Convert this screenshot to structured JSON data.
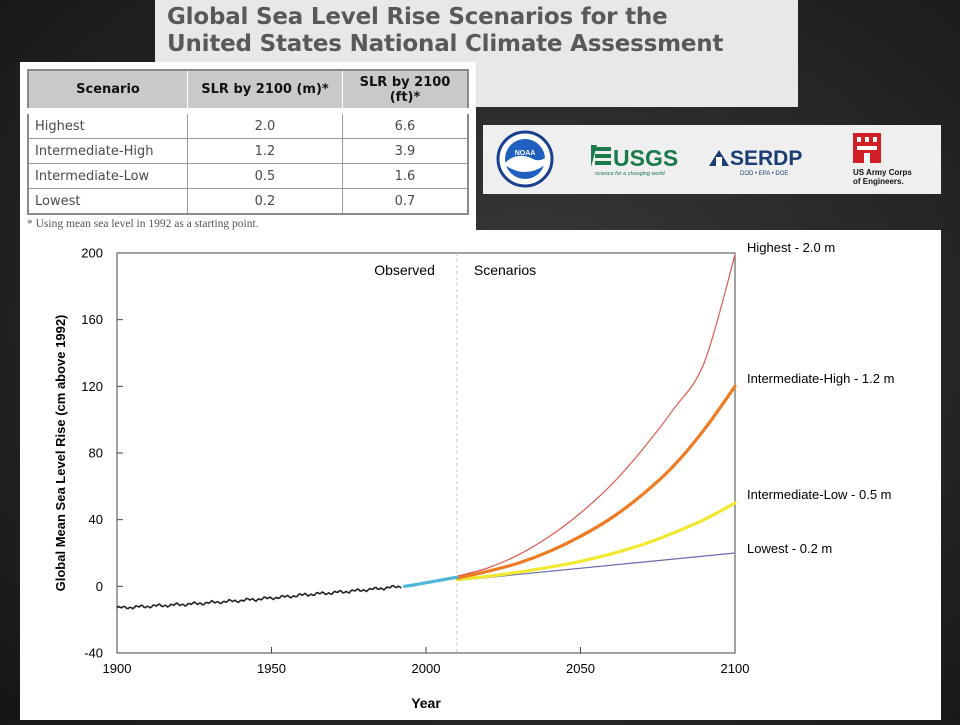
{
  "title": {
    "line1": "Global Sea Level Rise Scenarios for the",
    "line2": "United States National Climate Assessment"
  },
  "table": {
    "headers": [
      "Scenario",
      "SLR by 2100 (m)*",
      "SLR by 2100 (ft)*"
    ],
    "rows": [
      [
        "Highest",
        "2.0",
        "6.6"
      ],
      [
        "Intermediate-High",
        "1.2",
        "3.9"
      ],
      [
        "Intermediate-Low",
        "0.5",
        "1.6"
      ],
      [
        "Lowest",
        "0.2",
        "0.7"
      ]
    ],
    "footnote": "* Using mean sea level in 1992 as a starting point."
  },
  "logos": {
    "noaa": {
      "text": "NOAA",
      "icon": "noaa-logo"
    },
    "usgs": {
      "text": "USGS",
      "tagline": "science for a changing world",
      "icon": "usgs-logo"
    },
    "serdp": {
      "text": "SERDP",
      "tagline": "DOD • EPA • DOE",
      "icon": "serdp-logo"
    },
    "usace": {
      "line1": "US Army Corps",
      "line2": "of Engineers.",
      "icon": "usace-castle-logo"
    }
  },
  "colors": {
    "highest": "#e05a4e",
    "intermediate_high": "#ee7a22",
    "intermediate_low": "#f0e930",
    "lowest": "#6a6ab0",
    "observed": "#222222",
    "satellite": "#4fb6d9"
  },
  "chart_data": {
    "type": "line",
    "title": "",
    "xlabel": "Year",
    "ylabel": "Global Mean Sea Level Rise (cm above 1992)",
    "xlim": [
      1900,
      2100
    ],
    "ylim": [
      -40,
      200
    ],
    "xticks": [
      1900,
      1950,
      2000,
      2050,
      2100
    ],
    "yticks": [
      -40,
      0,
      40,
      80,
      120,
      160,
      200
    ],
    "region_labels": {
      "observed": "Observed",
      "scenarios": "Scenarios"
    },
    "divider_year": 2010,
    "grid": false,
    "legend": "labels at right end of each line",
    "observed": {
      "name": "Observed",
      "x": [
        1900,
        1905,
        1910,
        1915,
        1920,
        1925,
        1930,
        1935,
        1940,
        1945,
        1950,
        1955,
        1960,
        1965,
        1970,
        1975,
        1980,
        1985,
        1990,
        1992
      ],
      "y": [
        -13,
        -12.5,
        -12,
        -11.5,
        -11,
        -10.5,
        -9.8,
        -9.2,
        -8.5,
        -7.8,
        -7,
        -6.2,
        -5.2,
        -4.5,
        -3.8,
        -3,
        -2.2,
        -1.3,
        -0.4,
        0
      ]
    },
    "satellite": {
      "x": [
        1993,
        1996,
        1999,
        2002,
        2005,
        2008,
        2010
      ],
      "y": [
        0,
        0.8,
        1.8,
        2.8,
        3.8,
        4.8,
        5.4
      ]
    },
    "series": [
      {
        "name": "Highest - 2.0 m",
        "x": [
          2010,
          2020,
          2030,
          2040,
          2050,
          2060,
          2070,
          2080,
          2090,
          2100
        ],
        "y": [
          6,
          11,
          19,
          30,
          44,
          61,
          82,
          106,
          134,
          199
        ]
      },
      {
        "name": "Intermediate-High - 1.2 m",
        "x": [
          2010,
          2020,
          2030,
          2040,
          2050,
          2060,
          2070,
          2080,
          2090,
          2100
        ],
        "y": [
          5,
          9,
          14,
          21,
          30,
          41,
          55,
          72,
          94,
          120
        ]
      },
      {
        "name": "Intermediate-Low - 0.5 m",
        "x": [
          2010,
          2020,
          2030,
          2040,
          2050,
          2060,
          2070,
          2080,
          2090,
          2100
        ],
        "y": [
          4,
          6,
          8.5,
          11.5,
          15,
          19.5,
          25,
          32,
          40,
          50
        ]
      },
      {
        "name": "Lowest - 0.2 m",
        "x": [
          2010,
          2100
        ],
        "y": [
          3.5,
          20
        ]
      }
    ]
  }
}
